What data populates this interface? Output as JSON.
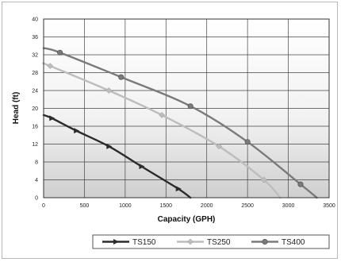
{
  "chart_data": {
    "type": "line",
    "xlabel": "Capacity (GPH)",
    "ylabel": "Head (ft)",
    "xlim": [
      0,
      3500
    ],
    "ylim": [
      0,
      40
    ],
    "xticks": [
      "0",
      "500",
      "1000",
      "1500",
      "2000",
      "2500",
      "3000",
      "3500"
    ],
    "yticks": [
      "0",
      "4",
      "8",
      "12",
      "16",
      "20",
      "24",
      "28",
      "32",
      "36",
      "40"
    ],
    "grid": true,
    "legend_position": "bottom",
    "series": [
      {
        "name": "TS150",
        "color": "#2b2b2b",
        "marker": "arrow",
        "x": [
          0,
          100,
          400,
          800,
          1200,
          1650,
          1800
        ],
        "y": [
          18.5,
          17.8,
          15,
          11.5,
          7,
          2,
          0
        ]
      },
      {
        "name": "TS250",
        "color": "#bdbdbd",
        "marker": "diamond",
        "x": [
          0,
          80,
          800,
          1450,
          2150,
          2700,
          2900
        ],
        "y": [
          30,
          29.5,
          24,
          18.5,
          11.5,
          4,
          0
        ]
      },
      {
        "name": "TS400",
        "color": "#7a7a7a",
        "marker": "circle",
        "x": [
          0,
          200,
          950,
          1800,
          2500,
          3150,
          3350
        ],
        "y": [
          33.5,
          32.5,
          27,
          20.5,
          12.5,
          3,
          0
        ]
      }
    ]
  }
}
